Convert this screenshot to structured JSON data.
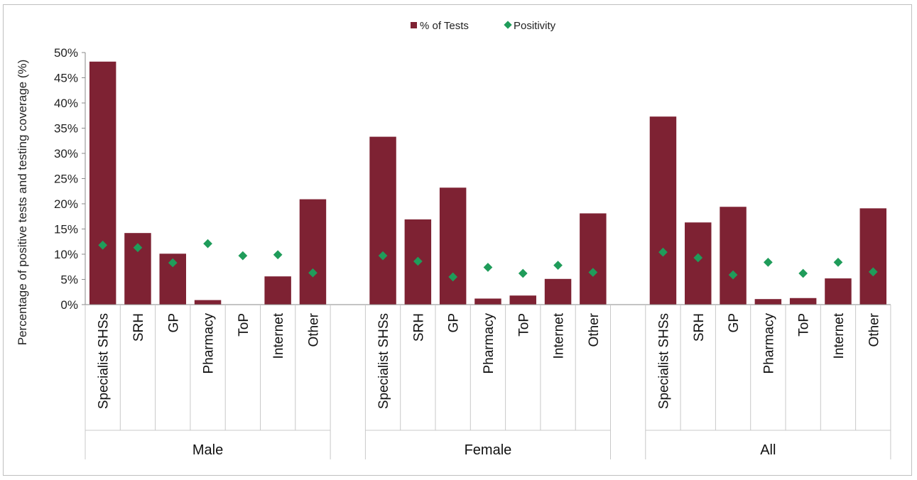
{
  "chart_data": {
    "type": "bar",
    "ylabel": "Percentage of positive tests and testing coverage (%)",
    "ylim": [
      0,
      50
    ],
    "yticks": [
      "0%",
      "5%",
      "10%",
      "15%",
      "20%",
      "25%",
      "30%",
      "35%",
      "40%",
      "45%",
      "50%"
    ],
    "legend": {
      "placement": "top-center",
      "entries": [
        "% of Tests",
        "Positivity"
      ]
    },
    "groups": [
      "Male",
      "Female",
      "All"
    ],
    "categories": [
      "Specialist SHSs",
      "SRH",
      "GP",
      "Pharmacy",
      "ToP",
      "Internet",
      "Other"
    ],
    "series": [
      {
        "name": "% of Tests",
        "kind": "bar",
        "color": "#7e2233",
        "values": [
          [
            48.2,
            14.2,
            10.1,
            0.9,
            0.0,
            5.6,
            20.9
          ],
          [
            33.3,
            16.9,
            23.2,
            1.2,
            1.8,
            5.1,
            18.1
          ],
          [
            37.3,
            16.3,
            19.4,
            1.1,
            1.3,
            5.2,
            19.1
          ]
        ]
      },
      {
        "name": "Positivity",
        "kind": "marker",
        "color": "#1f9c5a",
        "values": [
          [
            11.8,
            11.3,
            8.3,
            12.1,
            9.7,
            9.9,
            6.3
          ],
          [
            9.7,
            8.6,
            5.5,
            7.4,
            6.2,
            7.8,
            6.4
          ],
          [
            10.4,
            9.3,
            5.9,
            8.4,
            6.2,
            8.4,
            6.5
          ]
        ]
      }
    ]
  }
}
